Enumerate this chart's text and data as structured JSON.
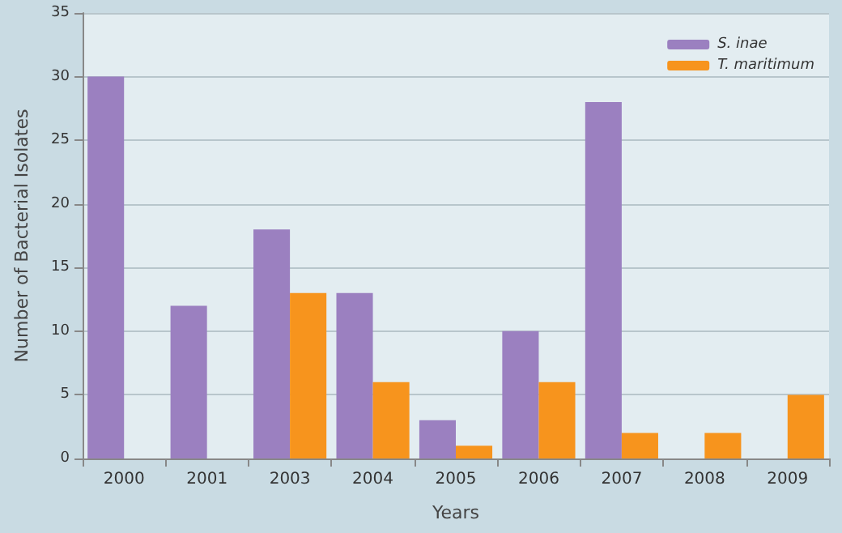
{
  "chart_data": {
    "type": "bar",
    "xlabel": "Years",
    "ylabel": "Number of Bacterial Isolates",
    "categories": [
      "2000",
      "2001",
      "2003",
      "2004",
      "2005",
      "2006",
      "2007",
      "2008",
      "2009"
    ],
    "series": [
      {
        "name": "S. inae",
        "color": "#9b80c0",
        "values": [
          30,
          12,
          18,
          13,
          3,
          10,
          28,
          null,
          null
        ]
      },
      {
        "name": "T. maritimum",
        "color": "#f7941d",
        "values": [
          null,
          null,
          13,
          6,
          1,
          6,
          2,
          2,
          5
        ]
      }
    ],
    "ylim": [
      0,
      35
    ],
    "yticks": [
      0,
      5,
      10,
      15,
      20,
      25,
      30,
      35
    ],
    "grid": "y",
    "legend": "top right"
  }
}
